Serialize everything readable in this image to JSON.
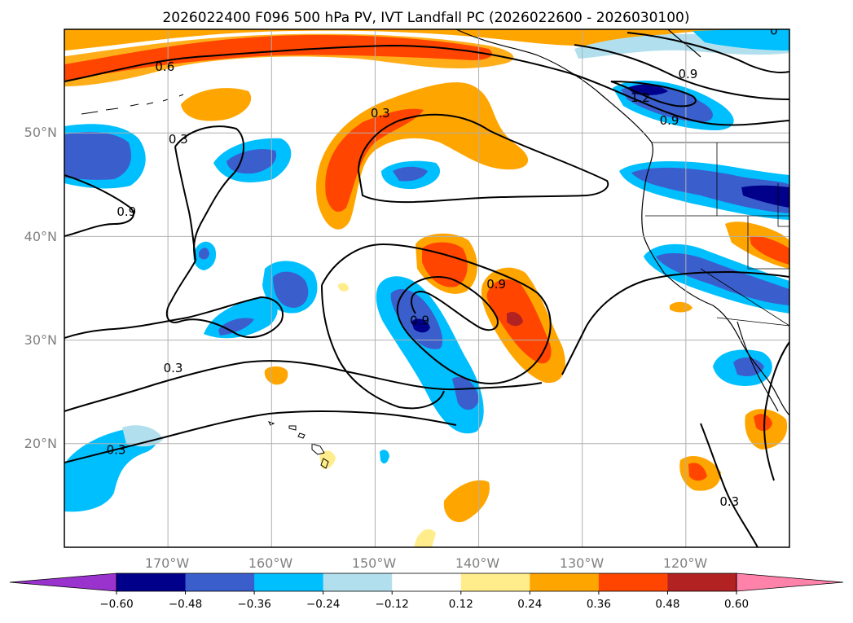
{
  "title": "2026022400 F096 500 hPa PV, IVT Landfall PC (2026022600 - 2026030100)",
  "map": {
    "lon_range": [
      -180,
      -110
    ],
    "lat_range": [
      10,
      60
    ],
    "gridlines": true,
    "lon_ticks": [
      {
        "lon": -170,
        "label": "170°W"
      },
      {
        "lon": -160,
        "label": "160°W"
      },
      {
        "lon": -150,
        "label": "150°W"
      },
      {
        "lon": -140,
        "label": "140°W"
      },
      {
        "lon": -130,
        "label": "130°W"
      },
      {
        "lon": -120,
        "label": "120°W"
      }
    ],
    "lat_ticks": [
      {
        "lat": 50,
        "label": "50°N"
      },
      {
        "lat": 40,
        "label": "40°N"
      },
      {
        "lat": 30,
        "label": "30°N"
      },
      {
        "lat": 20,
        "label": "20°N"
      }
    ],
    "contour_labels": [
      {
        "text": "0.6",
        "lon": -170.3,
        "lat": 56.0
      },
      {
        "text": "0.9",
        "lon": -119.8,
        "lat": 55.3
      },
      {
        "text": "1.2",
        "lon": -124.4,
        "lat": 53.0
      },
      {
        "text": "0.9",
        "lon": -121.6,
        "lat": 50.8
      },
      {
        "text": "0.3",
        "lon": -149.5,
        "lat": 51.5
      },
      {
        "text": "0.3",
        "lon": -169.0,
        "lat": 49.0
      },
      {
        "text": "0.9",
        "lon": -174.0,
        "lat": 42.0
      },
      {
        "text": "0.9",
        "lon": -138.3,
        "lat": 35.0
      },
      {
        "text": "0.9",
        "lon": -145.7,
        "lat": 31.5
      },
      {
        "text": "0.3",
        "lon": -169.5,
        "lat": 26.9
      },
      {
        "text": "0.3",
        "lon": -175.0,
        "lat": 19.0
      },
      {
        "text": "0.3",
        "lon": -115.8,
        "lat": 14.0
      },
      {
        "text": "0",
        "lon": -111.5,
        "lat": 59.5
      }
    ]
  },
  "colorbar": {
    "levels": [
      -0.6,
      -0.48,
      -0.36,
      -0.24,
      -0.12,
      0.12,
      0.24,
      0.36,
      0.48,
      0.6
    ],
    "labels": [
      "−0.60",
      "−0.48",
      "−0.36",
      "−0.24",
      "−0.12",
      "0.12",
      "0.24",
      "0.36",
      "0.48",
      "0.60"
    ],
    "colors": [
      "#9a32cd",
      "#00008b",
      "#3a5fcd",
      "#00bfff",
      "#b2dfee",
      "#ffffff",
      "#ffec8b",
      "#ffa500",
      "#ff4500",
      "#b22222",
      "#ff82ab"
    ]
  }
}
